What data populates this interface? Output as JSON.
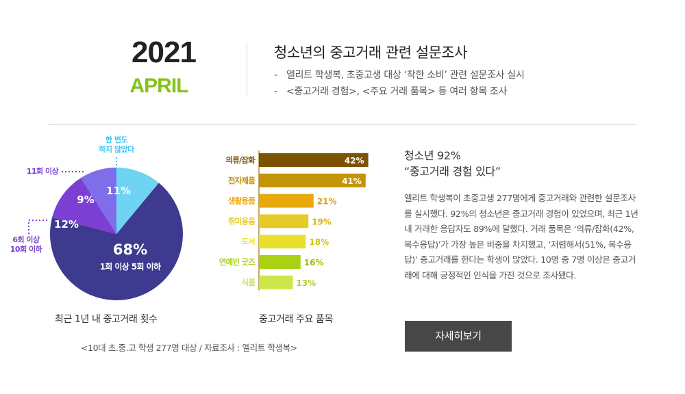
{
  "header": {
    "year": "2021",
    "month": "APRIL",
    "title": "청소년의 중고거래 관련 설문조사",
    "bullets": [
      "엘리트 학생복, 초중고생 대상 ‘착한 소비’ 관련 설문조사 실시",
      "<중고거래 경험>, <주요 거래 품목> 등 여러 항목 조사"
    ]
  },
  "chart_data": [
    {
      "type": "pie",
      "title": "최근 1년 내 중고거래 횟수",
      "slices": [
        {
          "name": "1회 이상 5회 이하",
          "value": 68,
          "label": "68%",
          "color": "#3d3a8f"
        },
        {
          "name": "6회 이상 10회 이하",
          "value": 12,
          "label": "12%",
          "color": "#7b3fd3"
        },
        {
          "name": "11회 이상",
          "value": 9,
          "label": "9%",
          "color": "#7e6ee9"
        },
        {
          "name": "한 번도 하지 않았다",
          "value": 11,
          "label": "11%",
          "color": "#6fd3f3"
        }
      ]
    },
    {
      "type": "bar",
      "orientation": "horizontal",
      "title": "중고거래 주요 품목",
      "categories": [
        "의류/잡화",
        "전자제품",
        "생활용품",
        "취미용품",
        "도서",
        "연예인 굿즈",
        "식품"
      ],
      "values": [
        42,
        41,
        21,
        19,
        18,
        16,
        13
      ],
      "value_labels": [
        "42%",
        "41%",
        "21%",
        "19%",
        "18%",
        "16%",
        "13%"
      ],
      "colors": [
        "#7c5203",
        "#c29406",
        "#e7a90c",
        "#e6ca28",
        "#e8e02a",
        "#a9d212",
        "#cbe54a"
      ],
      "label_colors": [
        "#fff",
        "#fff",
        "#d9a005",
        "#d9b505",
        "#cfc40c",
        "#9ebf0c",
        "#b5cf2e"
      ]
    }
  ],
  "pie_callouts": {
    "eleven_plus": "11회 이상",
    "six_ten": [
      "6회 이상",
      "10회 이하"
    ],
    "never": [
      "한 번도",
      "하지 않았다"
    ],
    "callout_color_never": "#3fc4f0",
    "callout_color_purple": "#7b3fd3"
  },
  "source": "<10대 초.중.고 학생 277명 대상 / 자료조사 : 엘리트 학생복>",
  "summary": {
    "title_lines": [
      "청소년 92%",
      "“중고거래 경험 있다”"
    ],
    "body": "엘리트 학생복이 초중고생 277명에게 중고거래와 관련한 설문조사를 실시했다. 92%의 청소년은 중고거래 경험이 있었으며, 최근 1년 내 거래한 응답자도 89%에 달했다. 거래 품목은 ‘의류/잡화(42%, 복수응답)’가 가장 높은 비중을 차지했고, ‘저렴해서(51%, 복수응답)’ 중고거래를 한다는 학생이 많았다. 10명 중 7명 이상은 중고거래에 대해 긍정적인 인식을 가진 것으로 조사됐다."
  },
  "more_button": "자세히보기"
}
